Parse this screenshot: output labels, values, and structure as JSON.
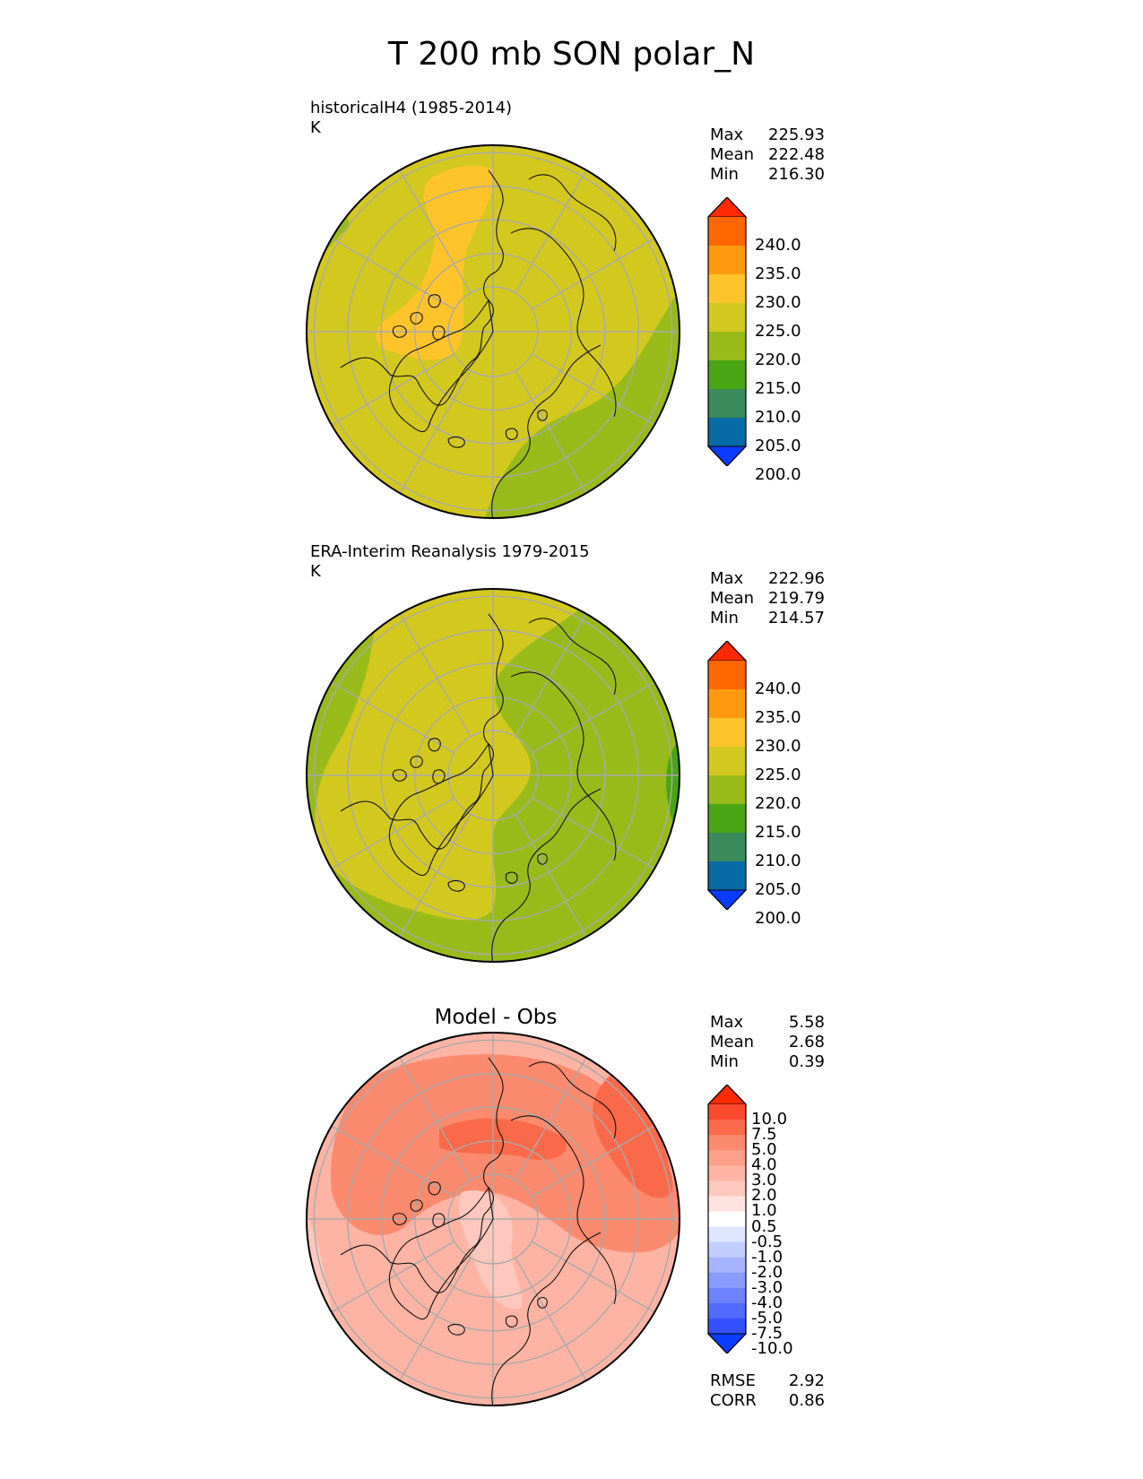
{
  "title": "T 200 mb SON polar_N",
  "panels": [
    {
      "label": "historicalH4 (1985-2014)",
      "units": "K",
      "stats": [
        {
          "key": "Max",
          "value": "225.93"
        },
        {
          "key": "Mean",
          "value": "222.48"
        },
        {
          "key": "Min",
          "value": "216.30"
        }
      ]
    },
    {
      "label": "ERA-Interim Reanalysis 1979-2015",
      "units": "K",
      "stats": [
        {
          "key": "Max",
          "value": "222.96"
        },
        {
          "key": "Mean",
          "value": "219.79"
        },
        {
          "key": "Min",
          "value": "214.57"
        }
      ]
    },
    {
      "title": "Model - Obs",
      "stats": [
        {
          "key": "Max",
          "value": "5.58"
        },
        {
          "key": "Mean",
          "value": "2.68"
        },
        {
          "key": "Min",
          "value": "0.39"
        }
      ],
      "metrics": [
        {
          "key": "RMSE",
          "value": "2.92"
        },
        {
          "key": "CORR",
          "value": "0.86"
        }
      ]
    }
  ],
  "colorbar_abs": {
    "labels": [
      "240.0",
      "235.0",
      "230.0",
      "225.0",
      "220.0",
      "215.0",
      "210.0",
      "205.0",
      "200.0"
    ],
    "colors_top_to_bottom": [
      "#ff2a00",
      "#ff6600",
      "#ff9a10",
      "#ffc42a",
      "#d3c81e",
      "#99bb1a",
      "#4aa514",
      "#3a8a5a",
      "#076aa4",
      "#0a3cff"
    ]
  },
  "colorbar_diff": {
    "labels": [
      "10.0",
      "7.5",
      "5.0",
      "4.0",
      "3.0",
      "2.0",
      "1.0",
      "0.5",
      "-0.5",
      "-1.0",
      "-2.0",
      "-3.0",
      "-4.0",
      "-5.0",
      "-7.5",
      "-10.0"
    ],
    "colors_top_to_bottom": [
      "#ff2a00",
      "#f94a2e",
      "#fa6a4a",
      "#fb8a6e",
      "#fca08a",
      "#fdb4a4",
      "#fec8be",
      "#ffe2de",
      "#ffffff",
      "#dfe6ff",
      "#c2cdff",
      "#a6b4ff",
      "#8a9bff",
      "#6e82ff",
      "#5069ff",
      "#3350ff",
      "#0a3cff"
    ]
  },
  "maps": [
    {
      "name": "model",
      "base_color": "#d3c81e",
      "bands": [
        {
          "color": "#99bb1a"
        },
        {
          "color": "#ffc42a"
        }
      ]
    },
    {
      "name": "obs",
      "base_color": "#99bb1a",
      "bands": [
        {
          "color": "#d3c81e"
        },
        {
          "color": "#4aa514"
        }
      ]
    },
    {
      "name": "diff",
      "base_color": "#fdb4a4",
      "bands": [
        {
          "color": "#fb8a6e"
        },
        {
          "color": "#fa6a4a"
        },
        {
          "color": "#fec8be"
        }
      ]
    }
  ]
}
